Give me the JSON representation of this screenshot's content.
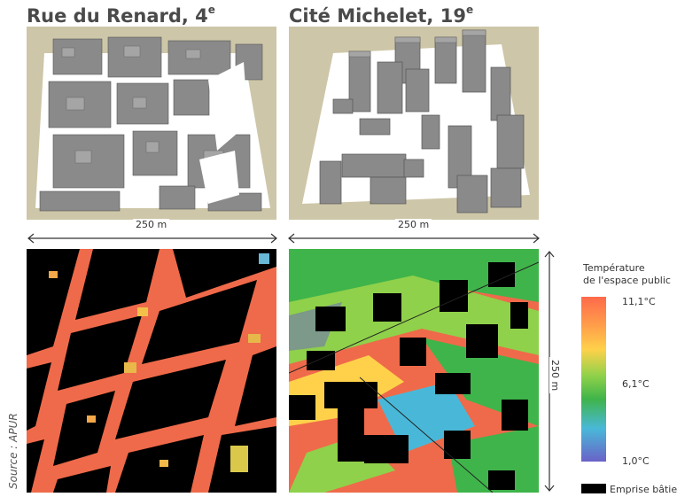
{
  "titles": {
    "left": "Rue du Renard, 4",
    "left_sup": "e",
    "right": "Cité Michelet, 19",
    "right_sup": "e"
  },
  "dimensions": {
    "left_width": "250 m",
    "right_width": "250 m",
    "right_height": "250 m"
  },
  "legend": {
    "title_line1": "Température",
    "title_line2": "de l'espace public",
    "max_label": "11,1°C",
    "mid_label": "6,1°C",
    "min_label": "1,0°C",
    "built_label": "Emprise bâtie",
    "colors": [
      "#ff6a4a",
      "#ffd14a",
      "#8fd14a",
      "#3fb44a",
      "#49b8d8",
      "#6a62c8"
    ],
    "built_color": "#000000"
  },
  "source": "Source : APUR"
}
